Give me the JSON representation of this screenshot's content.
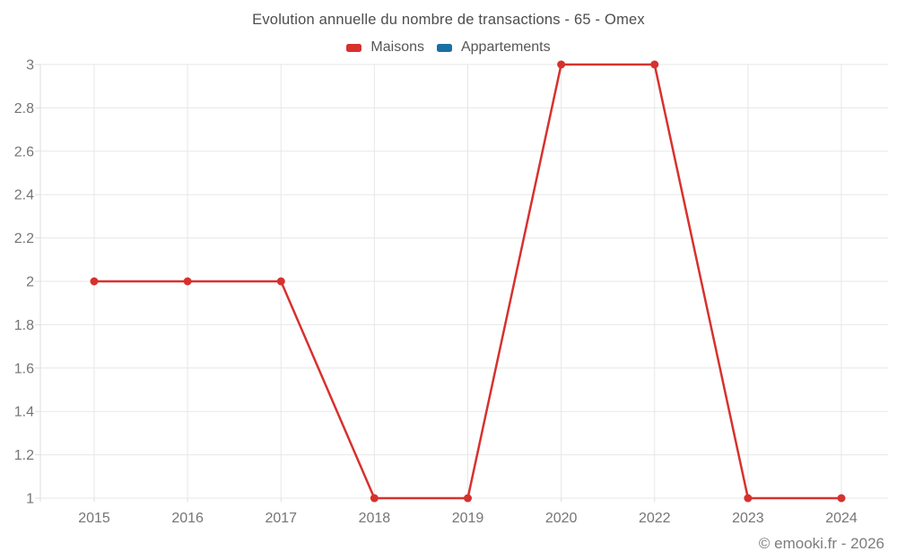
{
  "title": "Evolution annuelle du nombre de transactions - 65 - Omex",
  "watermark": "© emooki.fr - 2026",
  "chart_data": {
    "type": "line",
    "title": "Evolution annuelle du nombre de transactions - 65 - Omex",
    "categories": [
      "2015",
      "2016",
      "2017",
      "2018",
      "2019",
      "2020",
      "2022",
      "2023",
      "2024"
    ],
    "series": [
      {
        "name": "Maisons",
        "color": "#d7312e",
        "values": [
          2,
          2,
          2,
          1,
          1,
          3,
          3,
          1,
          1
        ]
      },
      {
        "name": "Appartements",
        "color": "#1a6fa4",
        "values": []
      }
    ],
    "xlabel": "",
    "ylabel": "",
    "ylim": [
      1,
      3
    ],
    "ytick_step": 0.2,
    "ytick_labels": [
      "1",
      "1.2",
      "1.4",
      "1.6",
      "1.8",
      "2",
      "2.2",
      "2.4",
      "2.6",
      "2.8",
      "3"
    ],
    "grid": true,
    "legend_position": "top",
    "colors": {
      "grid": "#e7e7e7",
      "axis_border": "#dedede",
      "tick_text": "#757575",
      "title_text": "#4d4d4d",
      "legend_text": "#565656",
      "watermark_text": "#7d7d7d"
    }
  }
}
